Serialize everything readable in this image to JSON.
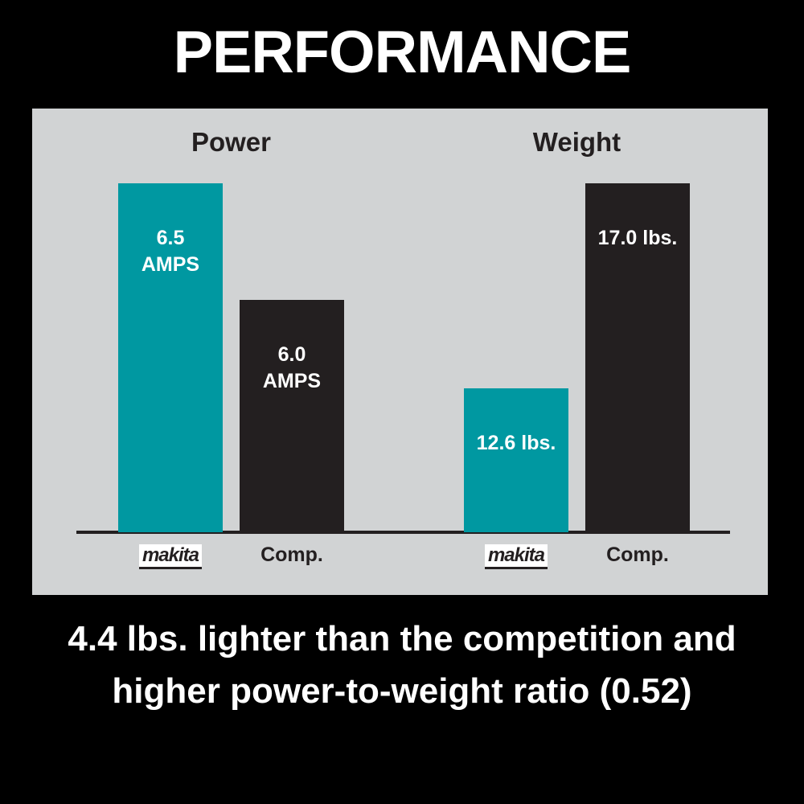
{
  "title": "PERFORMANCE",
  "caption": "4.4 lbs. lighter than the competition and higher power-to-weight ratio (0.52)",
  "chart_data": [
    {
      "type": "bar",
      "title": "Power",
      "categories": [
        "makita",
        "Comp."
      ],
      "values": [
        6.5,
        6.0
      ],
      "value_labels": [
        "6.5 AMPS",
        "6.0 AMPS"
      ],
      "colors": [
        "#0098a1",
        "#231f20"
      ],
      "ylim": [
        5,
        6.5
      ]
    },
    {
      "type": "bar",
      "title": "Weight",
      "categories": [
        "makita",
        "Comp."
      ],
      "values": [
        12.6,
        17.0
      ],
      "value_labels": [
        "12.6 lbs.",
        "17.0 lbs."
      ],
      "colors": [
        "#0098a1",
        "#231f20"
      ],
      "ylim": [
        9.5,
        17
      ]
    }
  ]
}
